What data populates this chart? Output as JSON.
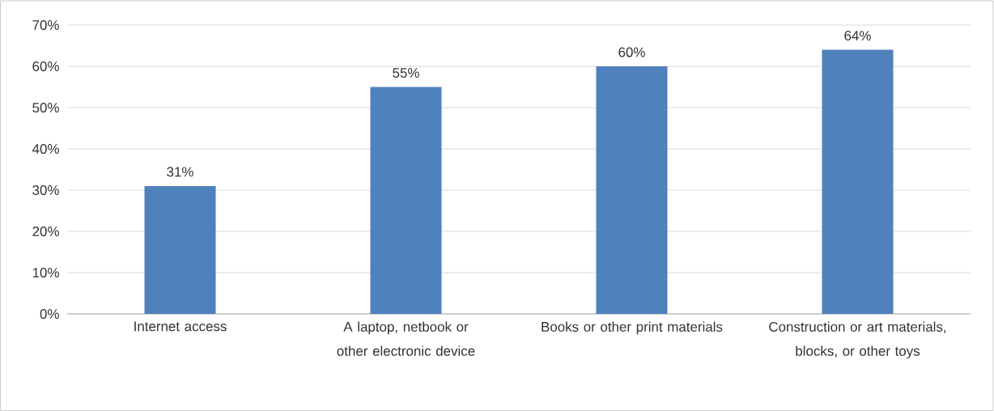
{
  "chart_data": {
    "type": "bar",
    "categories": [
      "Internet access",
      "A laptop, netbook or other electronic device",
      "Books or other print materials",
      "Construction or art materials, blocks, or other toys"
    ],
    "values": [
      31,
      55,
      60,
      64
    ],
    "value_labels": [
      "31%",
      "55%",
      "60%",
      "64%"
    ],
    "color": "#4f81bd",
    "ylim": [
      0,
      70
    ],
    "yticks": [
      {
        "value": 0,
        "label": "0%"
      },
      {
        "value": 10,
        "label": "10%"
      },
      {
        "value": 20,
        "label": "20%"
      },
      {
        "value": 30,
        "label": "30%"
      },
      {
        "value": 40,
        "label": "40%"
      },
      {
        "value": 50,
        "label": "50%"
      },
      {
        "value": 60,
        "label": "60%"
      },
      {
        "value": 70,
        "label": "70%"
      }
    ],
    "grid": "y"
  }
}
